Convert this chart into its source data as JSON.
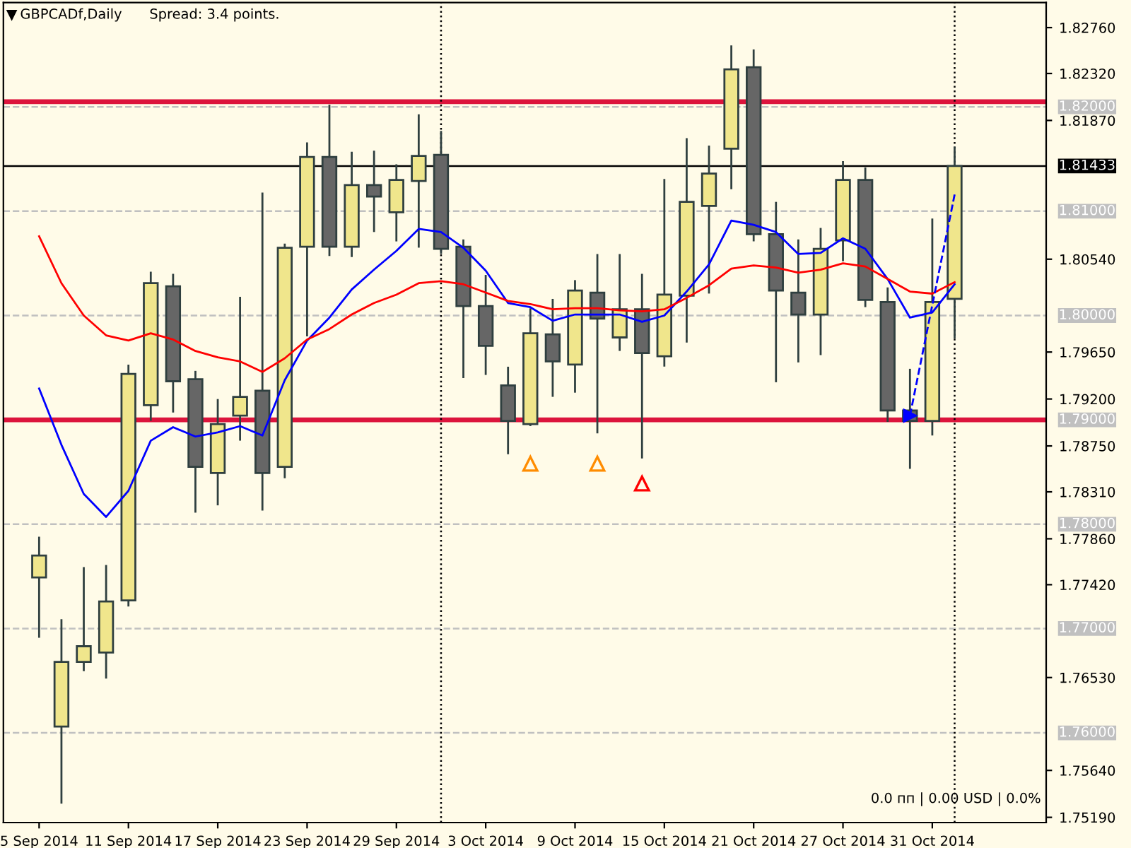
{
  "chart_data": {
    "type": "candlestick",
    "title": "GBPCADf,Daily",
    "annotations": [
      "Spread: 3.4 points.",
      "0.0 пп | 0.00 USD | 0.0%"
    ],
    "categories": [
      "5 Sep 2014",
      null,
      null,
      null,
      "11 Sep 2014",
      null,
      null,
      null,
      "17 Sep 2014",
      null,
      null,
      null,
      "23 Sep 2014",
      null,
      null,
      null,
      "29 Sep 2014",
      null,
      null,
      null,
      "3 Oct 2014",
      null,
      null,
      null,
      "9 Oct 2014",
      null,
      null,
      null,
      "15 Oct 2014",
      null,
      null,
      null,
      "21 Oct 2014",
      null,
      null,
      null,
      "27 Oct 2014",
      null,
      null,
      null,
      "31 Oct 2014",
      null
    ],
    "ohlc": [
      [
        1.7749,
        1.7787,
        1.7692,
        1.777
      ],
      [
        1.7606,
        1.7708,
        1.7533,
        1.7668
      ],
      [
        1.7668,
        1.7758,
        1.766,
        1.7683
      ],
      [
        1.7677,
        1.776,
        1.7653,
        1.7726
      ],
      [
        1.7727,
        1.7952,
        1.7722,
        1.7944
      ],
      [
        1.7914,
        1.8041,
        1.79,
        1.8031
      ],
      [
        1.8028,
        1.8039,
        1.7908,
        1.7937
      ],
      [
        1.7939,
        1.7946,
        1.7812,
        1.7855
      ],
      [
        1.7849,
        1.7919,
        1.7819,
        1.7896
      ],
      [
        1.7904,
        1.8017,
        1.7881,
        1.7922
      ],
      [
        1.7928,
        1.8117,
        1.7814,
        1.7849
      ],
      [
        1.7855,
        1.8068,
        1.7845,
        1.8065
      ],
      [
        1.8066,
        1.8165,
        1.7981,
        1.8152
      ],
      [
        1.8152,
        1.8201,
        1.8058,
        1.8066
      ],
      [
        1.8066,
        1.8156,
        1.8057,
        1.8125
      ],
      [
        1.8125,
        1.8157,
        1.8081,
        1.8114
      ],
      [
        1.8099,
        1.8144,
        1.8072,
        1.813
      ],
      [
        1.8129,
        1.8192,
        1.8066,
        1.8153
      ],
      [
        1.8154,
        1.8176,
        1.806,
        1.8064
      ],
      [
        1.8066,
        1.8072,
        1.7941,
        1.8009
      ],
      [
        1.8009,
        1.8038,
        1.7944,
        1.7971
      ],
      [
        1.7933,
        1.795,
        1.7868,
        1.7899
      ],
      [
        1.7896,
        1.8006,
        1.7895,
        1.7983
      ],
      [
        1.7982,
        1.8015,
        1.7923,
        1.7956
      ],
      [
        1.7953,
        1.8033,
        1.7927,
        1.8024
      ],
      [
        1.8022,
        1.8058,
        1.7888,
        1.7997
      ],
      [
        1.7979,
        1.8058,
        1.7967,
        1.8006
      ],
      [
        1.8006,
        1.8039,
        1.7864,
        1.7964
      ],
      [
        1.7961,
        1.813,
        1.7952,
        1.802
      ],
      [
        1.8019,
        1.8169,
        1.7975,
        1.8109
      ],
      [
        1.8105,
        1.8162,
        1.8022,
        1.8136
      ],
      [
        1.816,
        1.8258,
        1.8122,
        1.8236
      ],
      [
        1.8238,
        1.8254,
        1.8072,
        1.8078
      ],
      [
        1.8078,
        1.8108,
        1.7937,
        1.8024
      ],
      [
        1.8022,
        1.8072,
        1.7956,
        1.8001
      ],
      [
        1.8001,
        1.8083,
        1.7963,
        1.8064
      ],
      [
        1.8072,
        1.8147,
        1.8053,
        1.813
      ],
      [
        1.813,
        1.8141,
        1.8009,
        1.8015
      ],
      [
        1.8013,
        1.8026,
        1.7899,
        1.7909
      ],
      [
        1.7909,
        1.7948,
        1.7854,
        1.7899
      ],
      [
        1.7899,
        1.8092,
        1.7886,
        1.8013
      ],
      [
        1.8016,
        1.8161,
        1.7979,
        1.81433
      ]
    ],
    "colors": [
      "#f0e68c",
      "#f0e68c",
      "#f0e68c",
      "#f0e68c",
      "#f0e68c",
      "#f0e68c",
      "#666666",
      "#666666",
      "#f0e68c",
      "#f0e68c",
      "#666666",
      "#f0e68c",
      "#f0e68c",
      "#666666",
      "#f0e68c",
      "#666666",
      "#f0e68c",
      "#f0e68c",
      "#666666",
      "#666666",
      "#666666",
      "#666666",
      "#f0e68c",
      "#666666",
      "#f0e68c",
      "#666666",
      "#f0e68c",
      "#666666",
      "#f0e68c",
      "#f0e68c",
      "#f0e68c",
      "#f0e68c",
      "#666666",
      "#666666",
      "#666666",
      "#f0e68c",
      "#f0e68c",
      "#666666",
      "#666666",
      "#666666",
      "#f0e68c",
      "#f0e68c"
    ],
    "series": [
      {
        "type": "line",
        "color": "#0000ff",
        "values": [
          1.793,
          1.7876,
          1.7829,
          1.7807,
          1.7832,
          1.788,
          1.7893,
          1.7884,
          1.7888,
          1.7894,
          1.7885,
          1.7938,
          1.7976,
          1.7998,
          1.8025,
          1.8044,
          1.8062,
          1.8083,
          1.808,
          1.8065,
          1.8043,
          1.8012,
          1.8008,
          1.7995,
          1.8001,
          1.8001,
          1.8001,
          1.7994,
          1.8,
          1.8023,
          1.8049,
          1.8091,
          1.8087,
          1.808,
          1.8059,
          1.806,
          1.8074,
          1.8064,
          1.8035,
          1.7998,
          1.8003,
          1.803
        ]
      },
      {
        "type": "line",
        "color": "#ff0000",
        "values": [
          1.8076,
          1.8031,
          1.8,
          1.7981,
          1.7976,
          1.7983,
          1.7977,
          1.7966,
          1.796,
          1.7956,
          1.7946,
          1.7959,
          1.7977,
          1.7987,
          1.8001,
          1.8012,
          1.802,
          1.8031,
          1.8033,
          1.803,
          1.8022,
          1.8014,
          1.8011,
          1.8006,
          1.8007,
          1.8007,
          1.8005,
          1.8004,
          1.8006,
          1.8017,
          1.8029,
          1.8045,
          1.8048,
          1.8046,
          1.8041,
          1.8044,
          1.805,
          1.8047,
          1.8035,
          1.8023,
          1.8021,
          1.8032
        ]
      },
      {
        "type": "line",
        "color": "#0000ff",
        "line_style": "dashed",
        "values": [
          null,
          null,
          null,
          null,
          null,
          null,
          null,
          null,
          null,
          null,
          null,
          null,
          null,
          null,
          null,
          null,
          null,
          null,
          null,
          null,
          null,
          null,
          null,
          null,
          null,
          null,
          null,
          null,
          null,
          null,
          null,
          null,
          null,
          null,
          null,
          null,
          null,
          null,
          null,
          1.7904,
          null,
          1.8116
        ]
      }
    ],
    "ylim": [
      1.7514,
      1.83
    ],
    "yticks": [
      {
        "value": 1.8276,
        "label": "1.82760"
      },
      {
        "value": 1.8232,
        "label": "1.82320"
      },
      {
        "value": 1.8187,
        "label": "1.81870"
      },
      {
        "value": 1.8054,
        "label": "1.80540"
      },
      {
        "value": 1.7965,
        "label": "1.79650"
      },
      {
        "value": 1.792,
        "label": "1.79200"
      },
      {
        "value": 1.7875,
        "label": "1.78750"
      },
      {
        "value": 1.7831,
        "label": "1.78310"
      },
      {
        "value": 1.7786,
        "label": "1.77860"
      },
      {
        "value": 1.7742,
        "label": "1.77420"
      },
      {
        "value": 1.7653,
        "label": "1.76530"
      },
      {
        "value": 1.7564,
        "label": "1.75640"
      },
      {
        "value": 1.7519,
        "label": "1.75190"
      }
    ],
    "ref_lines": [
      {
        "axis": "y",
        "value": 1.82,
        "label": "1.82000",
        "color": "#c0c0c0",
        "line_style": "dashed"
      },
      {
        "axis": "y",
        "value": 1.81,
        "label": "1.81000",
        "color": "#c0c0c0",
        "line_style": "dashed"
      },
      {
        "axis": "y",
        "value": 1.8,
        "label": "1.80000",
        "color": "#c0c0c0",
        "line_style": "dashed"
      },
      {
        "axis": "y",
        "value": 1.78,
        "label": "1.78000",
        "color": "#c0c0c0",
        "line_style": "dashed"
      },
      {
        "axis": "y",
        "value": 1.77,
        "label": "1.77000",
        "color": "#c0c0c0",
        "line_style": "dashed"
      },
      {
        "axis": "y",
        "value": 1.76,
        "label": "1.76000",
        "color": "#c0c0c0",
        "line_style": "dashed"
      },
      {
        "axis": "y",
        "value": 1.79,
        "label": "1.79000",
        "color": "#dc143c",
        "line_style": "solid"
      },
      {
        "axis": "y",
        "value": 1.8205,
        "color": "#dc143c",
        "line_style": "solid"
      },
      {
        "axis": "y",
        "value": 1.81433,
        "label": "1.81433",
        "color": "#000000",
        "line_style": "solid"
      }
    ],
    "grid": false,
    "legend": false
  }
}
